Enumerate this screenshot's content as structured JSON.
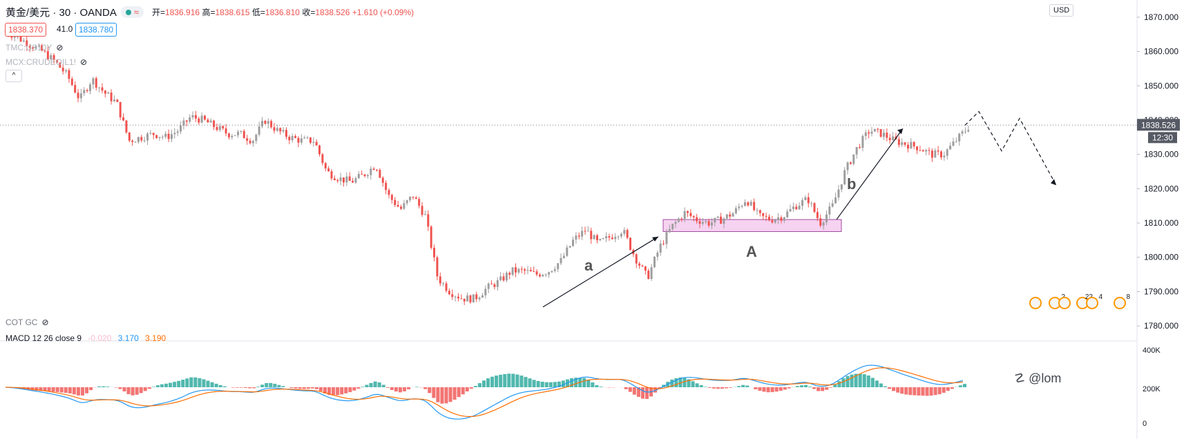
{
  "header": {
    "symbol": "黄金/美元 · 30 · OANDA",
    "ohlc": {
      "open_label": "开",
      "open": "1836.916",
      "high_label": "高",
      "high": "1838.615",
      "low_label": "低",
      "low": "1836.810",
      "close_label": "收",
      "close": "1838.526",
      "change": "+1.610 (+0.09%)"
    },
    "bid": "1838.370",
    "spread": "41.0",
    "ask": "1838.780"
  },
  "overlays": {
    "study1": "TMC:US10Y",
    "study2": "MCX:CRUDEOIL1!",
    "collapse": "^"
  },
  "lower_panel": {
    "cot_label": "COT GC",
    "macd_label": "MACD 12 26 close 9",
    "macd_hist": "-0.020",
    "macd_line": "3.170",
    "signal_line": "3.190"
  },
  "currency": "USD",
  "watermark": "@lom",
  "events": [
    "2",
    "22",
    "4",
    "8"
  ],
  "annotations": {
    "a": "a",
    "A": "A",
    "b": "b"
  },
  "chart_data": {
    "type": "candlestick",
    "title": "黄金/美元 · 30 · OANDA",
    "y_axis": {
      "range": [
        1776,
        1873
      ],
      "ticks": [
        1870,
        1860,
        1850,
        1840,
        1830,
        1820,
        1810,
        1800,
        1790,
        1780
      ],
      "tick_labels": [
        "1870.000",
        "1860.000",
        "1850.000",
        "1840.000",
        "1830.000",
        "1820.000",
        "1810.000",
        "1800.000",
        "1790.000",
        "1780.000"
      ],
      "current_price": "1838.526",
      "countdown": "12:30"
    },
    "price_path": [
      1866,
      1864,
      1862,
      1860,
      1857,
      1853,
      1846,
      1852,
      1848,
      1845,
      1834,
      1835,
      1836,
      1835,
      1837,
      1841,
      1840,
      1838,
      1836,
      1836,
      1834,
      1840,
      1837,
      1835,
      1834,
      1834,
      1825,
      1823,
      1822,
      1824,
      1827,
      1818,
      1814,
      1818,
      1812,
      1794,
      1790,
      1788,
      1788,
      1791,
      1793,
      1796,
      1796,
      1795,
      1796,
      1799,
      1805,
      1808,
      1804,
      1806,
      1808,
      1800,
      1794,
      1803,
      1809,
      1813,
      1811,
      1810,
      1811,
      1813,
      1817,
      1812,
      1811,
      1812,
      1815,
      1817,
      1810,
      1815,
      1825,
      1832,
      1837,
      1836,
      1834,
      1833,
      1832,
      1830,
      1830,
      1834,
      1838
    ],
    "forecast_path": [
      1838.5,
      1842.5,
      1831,
      1840.5,
      1821
    ],
    "zone_A": {
      "y_low": 1807.5,
      "y_high": 1811
    },
    "macd_axis": {
      "tick_labels": [
        "400K",
        "200K",
        "0"
      ]
    }
  }
}
